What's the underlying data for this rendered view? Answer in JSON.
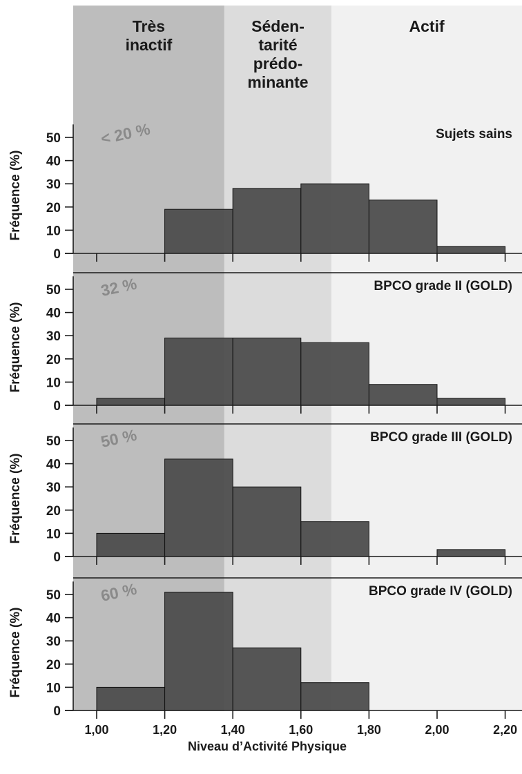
{
  "colors": {
    "zone_tres_inactif": "#bdbdbd",
    "zone_sedentarite": "#dcdcdc",
    "zone_actif": "#f1f1f1",
    "bar": "#4a4a4a",
    "percent_label": "#8a8a8a"
  },
  "chart_data": {
    "type": "bar",
    "xlabel": "Niveau d’Activité Physique",
    "ylabel": "Fréquence (%)",
    "x_ticks": [
      "1,00",
      "1,20",
      "1,40",
      "1,60",
      "1,80",
      "2,00",
      "2,20"
    ],
    "x_tick_values": [
      1.0,
      1.2,
      1.4,
      1.6,
      1.8,
      2.0,
      2.2
    ],
    "y_ticks": [
      "0",
      "10",
      "20",
      "30",
      "40",
      "50"
    ],
    "ylim": [
      0,
      55
    ],
    "bin_width": 0.2,
    "zones": [
      {
        "lines": [
          "Très",
          "inactif"
        ],
        "from": 0.93,
        "to": 1.375
      },
      {
        "lines": [
          "Séden-",
          "tarité",
          "prédo-",
          "minante"
        ],
        "from": 1.375,
        "to": 1.69
      },
      {
        "lines": [
          "Actif"
        ],
        "from": 1.69,
        "to": 2.25
      }
    ],
    "panels": [
      {
        "title": "Sujets sains",
        "percent": "< 20 %",
        "bins": [
          1.0,
          1.2,
          1.4,
          1.6,
          1.8,
          2.0
        ],
        "values": [
          0,
          19,
          28,
          30,
          23,
          3
        ]
      },
      {
        "title": "BPCO grade II (GOLD)",
        "percent": "32 %",
        "bins": [
          1.0,
          1.2,
          1.4,
          1.6,
          1.8,
          2.0
        ],
        "values": [
          3,
          29,
          29,
          27,
          9,
          3
        ]
      },
      {
        "title": "BPCO grade III (GOLD)",
        "percent": "50 %",
        "bins": [
          1.0,
          1.2,
          1.4,
          1.6,
          1.8,
          2.0
        ],
        "values": [
          10,
          42,
          30,
          15,
          0,
          3
        ]
      },
      {
        "title": "BPCO grade IV (GOLD)",
        "percent": "60 %",
        "bins": [
          1.0,
          1.2,
          1.4,
          1.6,
          1.8,
          2.0
        ],
        "values": [
          10,
          51,
          27,
          12,
          0,
          0
        ]
      }
    ]
  }
}
